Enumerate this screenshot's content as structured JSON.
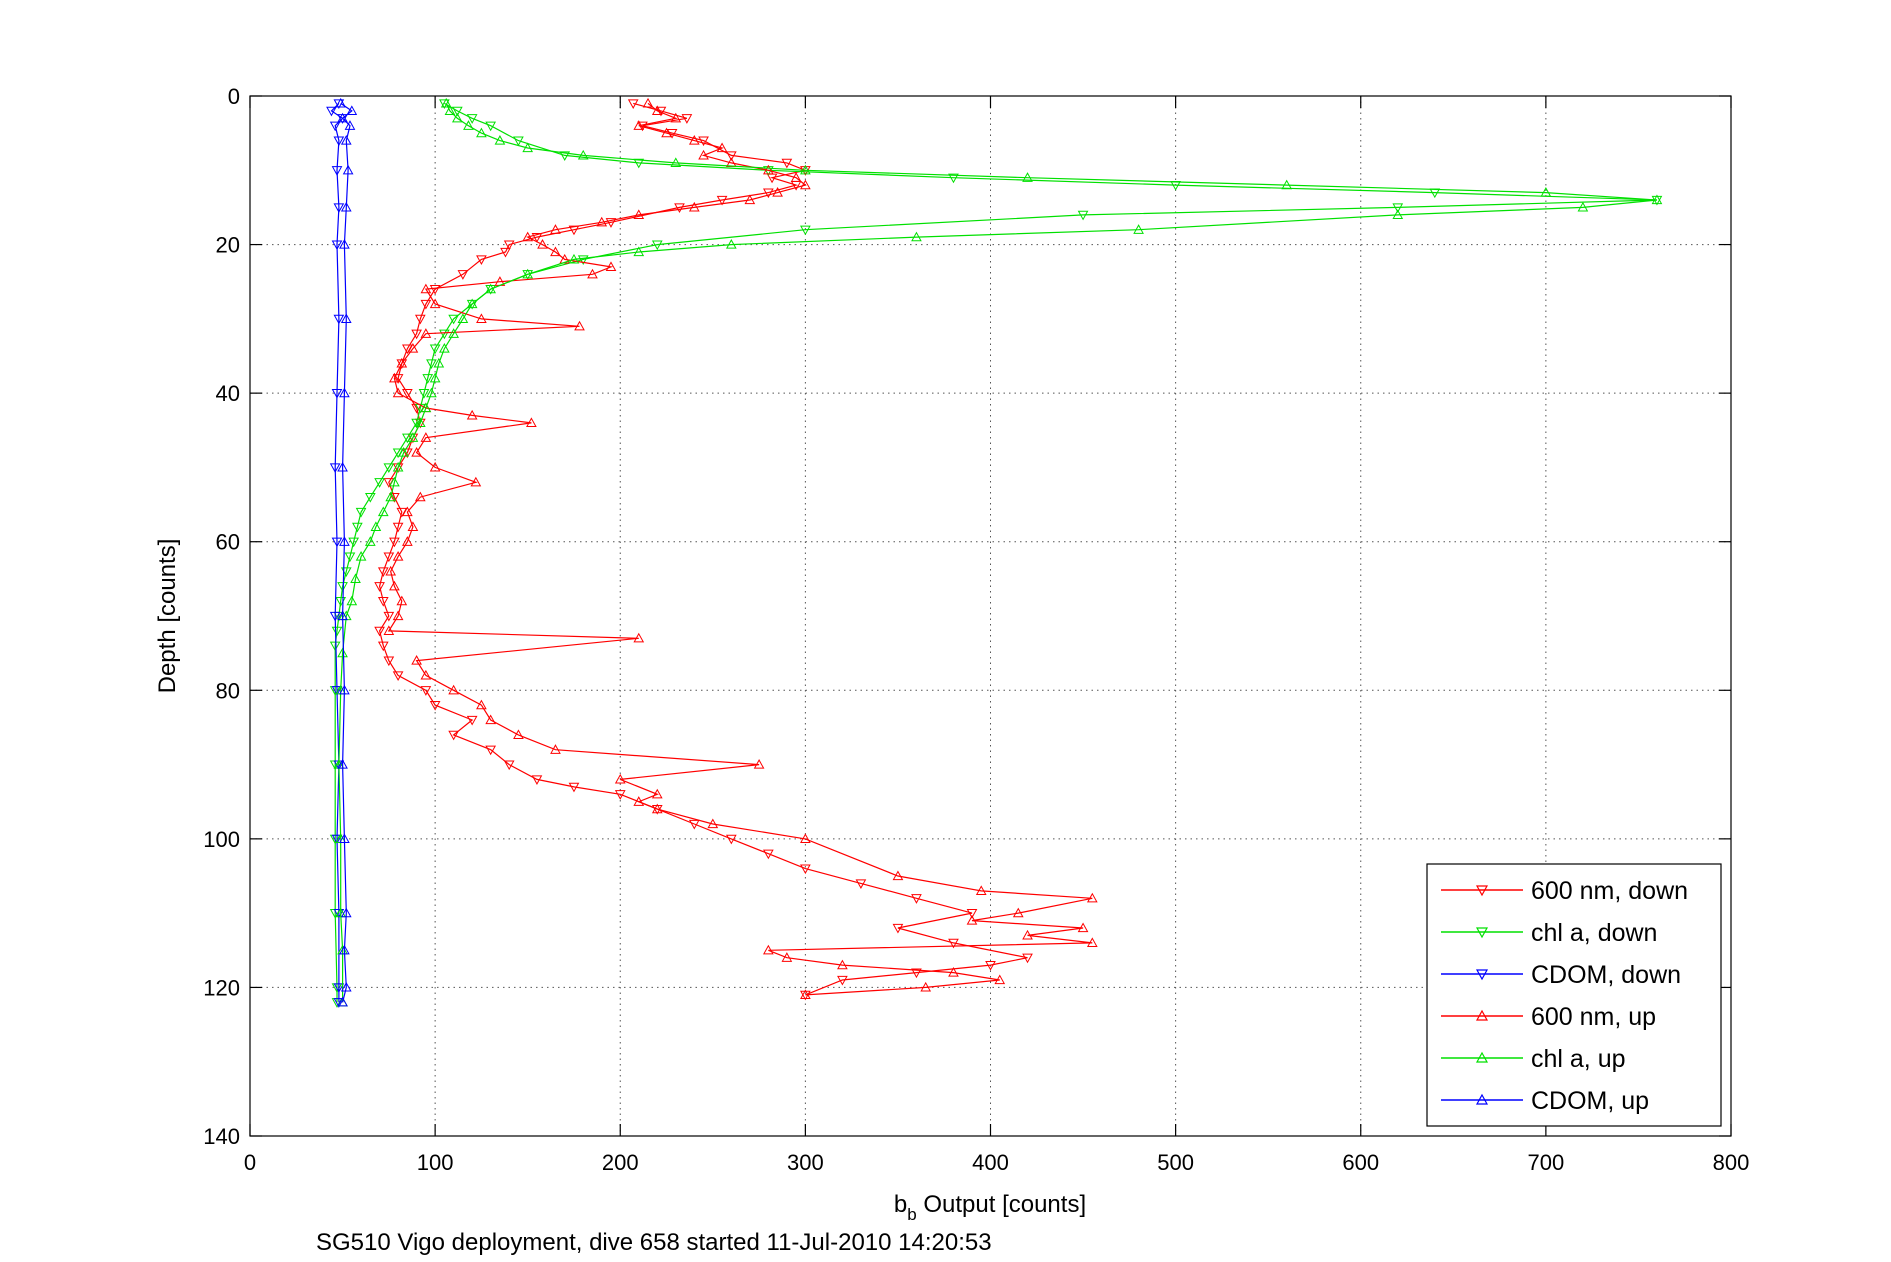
{
  "chart_data": {
    "type": "line",
    "title": "",
    "xlabel_main": "b",
    "xlabel_sub": "b",
    "xlabel_rest": " Output [counts]",
    "ylabel": "Depth [counts]",
    "caption": "SG510 Vigo deployment, dive 658 started 11-Jul-2010 14:20:53",
    "xlim": [
      0,
      800
    ],
    "ylim": [
      0,
      140
    ],
    "y_reversed": true,
    "grid": true,
    "x_ticks": [
      "0",
      "100",
      "200",
      "300",
      "400",
      "500",
      "600",
      "700",
      "800"
    ],
    "y_ticks": [
      "0",
      "20",
      "40",
      "60",
      "80",
      "100",
      "120",
      "140"
    ],
    "legend_position": "bottom-right",
    "series": [
      {
        "name": "600 nm, down",
        "color": "#ff0000",
        "marker": "triangle-down",
        "points": [
          [
            207,
            1
          ],
          [
            222,
            2
          ],
          [
            236,
            3
          ],
          [
            212,
            4
          ],
          [
            228,
            5
          ],
          [
            245,
            6
          ],
          [
            260,
            8
          ],
          [
            290,
            9
          ],
          [
            300,
            10
          ],
          [
            282,
            11
          ],
          [
            295,
            12
          ],
          [
            280,
            13
          ],
          [
            255,
            14
          ],
          [
            232,
            15
          ],
          [
            195,
            17
          ],
          [
            175,
            18
          ],
          [
            155,
            19
          ],
          [
            140,
            20
          ],
          [
            138,
            21
          ],
          [
            125,
            22
          ],
          [
            115,
            24
          ],
          [
            100,
            26
          ],
          [
            95,
            28
          ],
          [
            92,
            30
          ],
          [
            90,
            32
          ],
          [
            85,
            34
          ],
          [
            82,
            36
          ],
          [
            80,
            38
          ],
          [
            85,
            40
          ],
          [
            90,
            42
          ],
          [
            92,
            44
          ],
          [
            88,
            46
          ],
          [
            85,
            48
          ],
          [
            80,
            50
          ],
          [
            75,
            52
          ],
          [
            78,
            54
          ],
          [
            82,
            56
          ],
          [
            80,
            58
          ],
          [
            78,
            60
          ],
          [
            75,
            62
          ],
          [
            72,
            64
          ],
          [
            70,
            66
          ],
          [
            72,
            68
          ],
          [
            75,
            70
          ],
          [
            70,
            72
          ],
          [
            72,
            74
          ],
          [
            75,
            76
          ],
          [
            80,
            78
          ],
          [
            95,
            80
          ],
          [
            100,
            82
          ],
          [
            120,
            84
          ],
          [
            110,
            86
          ],
          [
            130,
            88
          ],
          [
            140,
            90
          ],
          [
            155,
            92
          ],
          [
            175,
            93
          ],
          [
            200,
            94
          ],
          [
            220,
            96
          ],
          [
            240,
            98
          ],
          [
            260,
            100
          ],
          [
            280,
            102
          ],
          [
            300,
            104
          ],
          [
            330,
            106
          ],
          [
            360,
            108
          ],
          [
            390,
            110
          ],
          [
            350,
            112
          ],
          [
            380,
            114
          ],
          [
            420,
            116
          ],
          [
            400,
            117
          ],
          [
            360,
            118
          ],
          [
            320,
            119
          ],
          [
            300,
            121
          ]
        ]
      },
      {
        "name": "chl a, down",
        "color": "#00e000",
        "marker": "triangle-down",
        "points": [
          [
            105,
            1
          ],
          [
            112,
            2
          ],
          [
            120,
            3
          ],
          [
            130,
            4
          ],
          [
            145,
            6
          ],
          [
            170,
            8
          ],
          [
            210,
            9
          ],
          [
            280,
            10
          ],
          [
            380,
            11
          ],
          [
            500,
            12
          ],
          [
            640,
            13
          ],
          [
            760,
            14
          ],
          [
            620,
            15
          ],
          [
            450,
            16
          ],
          [
            300,
            18
          ],
          [
            220,
            20
          ],
          [
            180,
            22
          ],
          [
            150,
            24
          ],
          [
            130,
            26
          ],
          [
            120,
            28
          ],
          [
            110,
            30
          ],
          [
            105,
            32
          ],
          [
            100,
            34
          ],
          [
            98,
            36
          ],
          [
            96,
            38
          ],
          [
            94,
            40
          ],
          [
            92,
            42
          ],
          [
            90,
            44
          ],
          [
            85,
            46
          ],
          [
            80,
            48
          ],
          [
            75,
            50
          ],
          [
            70,
            52
          ],
          [
            65,
            54
          ],
          [
            60,
            56
          ],
          [
            58,
            58
          ],
          [
            56,
            60
          ],
          [
            54,
            62
          ],
          [
            52,
            64
          ],
          [
            50,
            66
          ],
          [
            49,
            68
          ],
          [
            48,
            70
          ],
          [
            47,
            72
          ],
          [
            46,
            74
          ],
          [
            46,
            80
          ],
          [
            46,
            90
          ],
          [
            46,
            100
          ],
          [
            46,
            110
          ],
          [
            47,
            120
          ],
          [
            47,
            122
          ]
        ]
      },
      {
        "name": "CDOM, down",
        "color": "#0000ff",
        "marker": "triangle-down",
        "points": [
          [
            48,
            1
          ],
          [
            44,
            2
          ],
          [
            50,
            3
          ],
          [
            46,
            4
          ],
          [
            48,
            6
          ],
          [
            47,
            10
          ],
          [
            48,
            15
          ],
          [
            47,
            20
          ],
          [
            48,
            30
          ],
          [
            47,
            40
          ],
          [
            46,
            50
          ],
          [
            47,
            60
          ],
          [
            46,
            70
          ],
          [
            47,
            80
          ],
          [
            48,
            90
          ],
          [
            47,
            100
          ],
          [
            48,
            110
          ],
          [
            48,
            120
          ],
          [
            48,
            122
          ]
        ]
      },
      {
        "name": "600 nm, up",
        "color": "#ff0000",
        "marker": "triangle-up",
        "points": [
          [
            300,
            121
          ],
          [
            365,
            120
          ],
          [
            405,
            119
          ],
          [
            380,
            118
          ],
          [
            320,
            117
          ],
          [
            290,
            116
          ],
          [
            280,
            115
          ],
          [
            455,
            114
          ],
          [
            420,
            113
          ],
          [
            450,
            112
          ],
          [
            390,
            111
          ],
          [
            415,
            110
          ],
          [
            455,
            108
          ],
          [
            395,
            107
          ],
          [
            350,
            105
          ],
          [
            300,
            100
          ],
          [
            250,
            98
          ],
          [
            220,
            96
          ],
          [
            210,
            95
          ],
          [
            220,
            94
          ],
          [
            200,
            92
          ],
          [
            275,
            90
          ],
          [
            165,
            88
          ],
          [
            145,
            86
          ],
          [
            130,
            84
          ],
          [
            125,
            82
          ],
          [
            110,
            80
          ],
          [
            95,
            78
          ],
          [
            90,
            76
          ],
          [
            210,
            73
          ],
          [
            75,
            72
          ],
          [
            80,
            70
          ],
          [
            82,
            68
          ],
          [
            78,
            66
          ],
          [
            76,
            64
          ],
          [
            80,
            62
          ],
          [
            85,
            60
          ],
          [
            88,
            58
          ],
          [
            85,
            56
          ],
          [
            92,
            54
          ],
          [
            122,
            52
          ],
          [
            100,
            50
          ],
          [
            90,
            48
          ],
          [
            95,
            46
          ],
          [
            152,
            44
          ],
          [
            120,
            43
          ],
          [
            95,
            42
          ],
          [
            80,
            40
          ],
          [
            78,
            38
          ],
          [
            82,
            36
          ],
          [
            88,
            34
          ],
          [
            95,
            32
          ],
          [
            178,
            31
          ],
          [
            125,
            30
          ],
          [
            100,
            28
          ],
          [
            95,
            26
          ],
          [
            135,
            25
          ],
          [
            185,
            24
          ],
          [
            195,
            23
          ],
          [
            170,
            22
          ],
          [
            165,
            21
          ],
          [
            158,
            20
          ],
          [
            150,
            19
          ],
          [
            165,
            18
          ],
          [
            190,
            17
          ],
          [
            210,
            16
          ],
          [
            240,
            15
          ],
          [
            270,
            14
          ],
          [
            285,
            13
          ],
          [
            300,
            12
          ],
          [
            295,
            11
          ],
          [
            280,
            10
          ],
          [
            260,
            9
          ],
          [
            245,
            8
          ],
          [
            255,
            7
          ],
          [
            240,
            6
          ],
          [
            225,
            5
          ],
          [
            210,
            4
          ],
          [
            230,
            3
          ],
          [
            220,
            2
          ],
          [
            215,
            1
          ]
        ]
      },
      {
        "name": "chl a, up",
        "color": "#00e000",
        "marker": "triangle-up",
        "points": [
          [
            50,
            122
          ],
          [
            50,
            115
          ],
          [
            49,
            110
          ],
          [
            49,
            100
          ],
          [
            48,
            90
          ],
          [
            49,
            80
          ],
          [
            50,
            75
          ],
          [
            52,
            70
          ],
          [
            55,
            68
          ],
          [
            57,
            65
          ],
          [
            60,
            62
          ],
          [
            65,
            60
          ],
          [
            68,
            58
          ],
          [
            72,
            56
          ],
          [
            76,
            54
          ],
          [
            78,
            52
          ],
          [
            80,
            50
          ],
          [
            83,
            48
          ],
          [
            88,
            46
          ],
          [
            92,
            44
          ],
          [
            95,
            42
          ],
          [
            98,
            40
          ],
          [
            100,
            38
          ],
          [
            102,
            36
          ],
          [
            105,
            34
          ],
          [
            110,
            32
          ],
          [
            115,
            30
          ],
          [
            120,
            28
          ],
          [
            130,
            26
          ],
          [
            150,
            24
          ],
          [
            175,
            22
          ],
          [
            210,
            21
          ],
          [
            260,
            20
          ],
          [
            360,
            19
          ],
          [
            480,
            18
          ],
          [
            620,
            16
          ],
          [
            720,
            15
          ],
          [
            760,
            14
          ],
          [
            700,
            13
          ],
          [
            560,
            12
          ],
          [
            420,
            11
          ],
          [
            300,
            10
          ],
          [
            230,
            9
          ],
          [
            180,
            8
          ],
          [
            150,
            7
          ],
          [
            135,
            6
          ],
          [
            125,
            5
          ],
          [
            118,
            4
          ],
          [
            112,
            3
          ],
          [
            108,
            2
          ],
          [
            106,
            1
          ]
        ]
      },
      {
        "name": "CDOM, up",
        "color": "#0000ff",
        "marker": "triangle-up",
        "points": [
          [
            50,
            122
          ],
          [
            52,
            120
          ],
          [
            51,
            115
          ],
          [
            52,
            110
          ],
          [
            51,
            100
          ],
          [
            50,
            90
          ],
          [
            51,
            80
          ],
          [
            50,
            70
          ],
          [
            51,
            60
          ],
          [
            50,
            50
          ],
          [
            51,
            40
          ],
          [
            52,
            30
          ],
          [
            51,
            20
          ],
          [
            52,
            15
          ],
          [
            53,
            10
          ],
          [
            52,
            6
          ],
          [
            54,
            4
          ],
          [
            50,
            3
          ],
          [
            55,
            2
          ],
          [
            49,
            1
          ]
        ]
      }
    ]
  }
}
